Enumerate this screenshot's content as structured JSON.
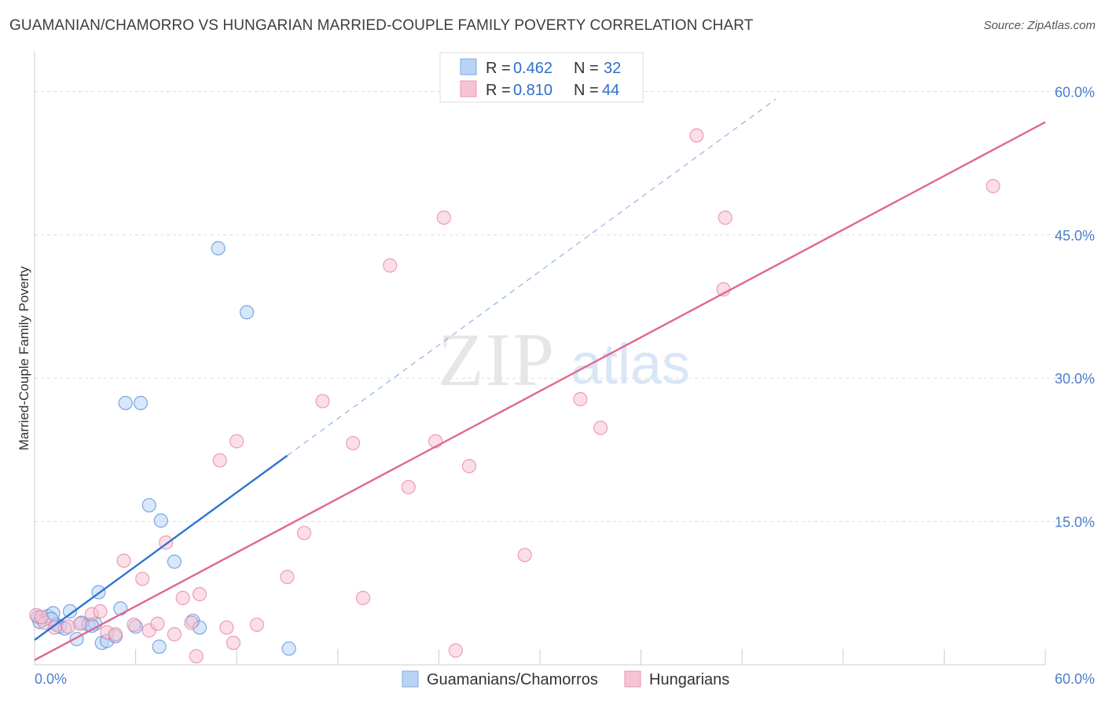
{
  "header": {
    "title": "GUAMANIAN/CHAMORRO VS HUNGARIAN MARRIED-COUPLE FAMILY POVERTY CORRELATION CHART",
    "source": "Source: ZipAtlas.com"
  },
  "watermark": {
    "zip": "ZIP",
    "atlas": "atlas"
  },
  "colors": {
    "blue": "#2f74d0",
    "blue_fill": "#b9d3f5",
    "pink": "#e0678f",
    "pink_fill": "#f7c3d4",
    "tick_text": "#4a7fcf",
    "grid": "#dddddd"
  },
  "stats_legend": {
    "rows": [
      {
        "r_label": "R =",
        "r_value": "0.462",
        "n_label": "N =",
        "n_value": "32"
      },
      {
        "r_label": "R =",
        "r_value": "0.810",
        "n_label": "N =",
        "n_value": "44"
      }
    ]
  },
  "chart_data": {
    "type": "scatter",
    "title": "GUAMANIAN/CHAMORRO VS HUNGARIAN MARRIED-COUPLE FAMILY POVERTY CORRELATION CHART",
    "xlabel": "",
    "ylabel": "Married-Couple Family Poverty",
    "xlim": [
      0,
      60
    ],
    "ylim": [
      0,
      63
    ],
    "x_tick_labels": [
      "0.0%",
      "60.0%"
    ],
    "y_ticks": [
      15,
      30,
      45,
      60
    ],
    "y_tick_labels": [
      "15.0%",
      "30.0%",
      "45.0%",
      "60.0%"
    ],
    "grid": true,
    "legend_position": "bottom-center",
    "series": [
      {
        "name": "Guamanians/Chamorros",
        "color": "#2f74d0",
        "fill": "#b9d3f5",
        "points": [
          [
            0.2,
            5.0
          ],
          [
            0.5,
            4.7
          ],
          [
            0.8,
            5.1
          ],
          [
            1.1,
            5.4
          ],
          [
            1.3,
            4.2
          ],
          [
            1.5,
            4.0
          ],
          [
            1.8,
            3.8
          ],
          [
            2.1,
            5.6
          ],
          [
            2.5,
            2.7
          ],
          [
            2.8,
            4.4
          ],
          [
            3.2,
            4.2
          ],
          [
            3.6,
            4.3
          ],
          [
            3.8,
            7.6
          ],
          [
            4.0,
            2.3
          ],
          [
            4.3,
            2.5
          ],
          [
            4.8,
            3.0
          ],
          [
            5.1,
            5.9
          ],
          [
            5.4,
            27.4
          ],
          [
            6.0,
            4.0
          ],
          [
            6.3,
            27.4
          ],
          [
            6.8,
            16.7
          ],
          [
            7.4,
            1.9
          ],
          [
            7.5,
            15.1
          ],
          [
            8.3,
            10.8
          ],
          [
            9.4,
            4.6
          ],
          [
            9.8,
            3.9
          ],
          [
            10.9,
            43.6
          ],
          [
            12.6,
            36.9
          ],
          [
            15.1,
            1.7
          ],
          [
            0.3,
            4.5
          ],
          [
            1.0,
            4.8
          ],
          [
            3.4,
            4.1
          ]
        ]
      },
      {
        "name": "Hungarians",
        "color": "#e0678f",
        "fill": "#f7c3d4",
        "points": [
          [
            0.1,
            5.2
          ],
          [
            0.6,
            4.4
          ],
          [
            1.2,
            3.9
          ],
          [
            2.0,
            4.0
          ],
          [
            2.7,
            4.3
          ],
          [
            3.4,
            5.3
          ],
          [
            3.9,
            5.6
          ],
          [
            4.3,
            3.4
          ],
          [
            4.8,
            3.2
          ],
          [
            5.3,
            10.9
          ],
          [
            5.9,
            4.2
          ],
          [
            6.4,
            9.0
          ],
          [
            6.8,
            3.6
          ],
          [
            7.3,
            4.3
          ],
          [
            7.8,
            12.8
          ],
          [
            8.3,
            3.2
          ],
          [
            8.8,
            7.0
          ],
          [
            9.3,
            4.4
          ],
          [
            9.6,
            0.9
          ],
          [
            9.8,
            7.4
          ],
          [
            11.0,
            21.4
          ],
          [
            11.4,
            3.9
          ],
          [
            11.8,
            2.3
          ],
          [
            12.0,
            23.4
          ],
          [
            13.2,
            4.2
          ],
          [
            15.0,
            9.2
          ],
          [
            16.0,
            13.8
          ],
          [
            17.1,
            27.6
          ],
          [
            18.9,
            23.2
          ],
          [
            19.5,
            7.0
          ],
          [
            21.1,
            41.8
          ],
          [
            22.2,
            18.6
          ],
          [
            23.8,
            23.4
          ],
          [
            24.3,
            46.8
          ],
          [
            25.0,
            1.5
          ],
          [
            25.8,
            20.8
          ],
          [
            29.1,
            11.5
          ],
          [
            32.4,
            27.8
          ],
          [
            33.6,
            24.8
          ],
          [
            39.3,
            55.4
          ],
          [
            40.9,
            39.3
          ],
          [
            41.0,
            46.8
          ],
          [
            56.9,
            50.1
          ],
          [
            0.4,
            5.0
          ]
        ]
      }
    ],
    "trendlines": [
      {
        "series": "Guamanians/Chamorros",
        "solid_from": [
          0.0,
          2.6
        ],
        "solid_to": [
          15.0,
          21.9
        ],
        "dashed_to": [
          44.0,
          59.2
        ]
      },
      {
        "series": "Hungarians",
        "from": [
          0.0,
          0.5
        ],
        "to": [
          60.0,
          56.8
        ]
      }
    ]
  }
}
